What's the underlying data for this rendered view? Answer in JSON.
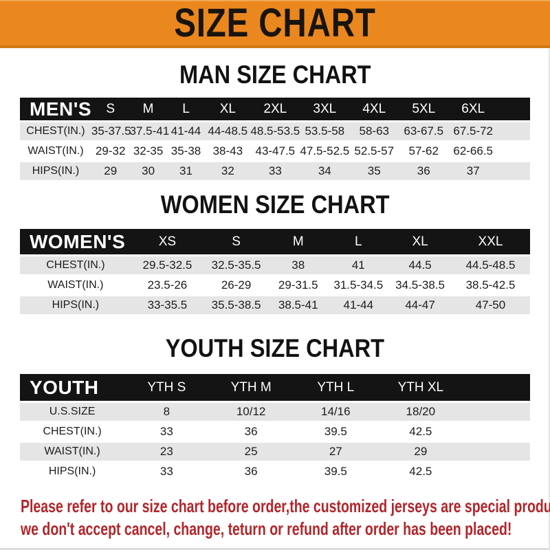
{
  "banner": {
    "title": "SIZE CHART"
  },
  "sections": [
    {
      "key": "men",
      "title": "MAN SIZE CHART",
      "header_label": "MEN'S",
      "columns": [
        "S",
        "M",
        "L",
        "XL",
        "2XL",
        "3XL",
        "4XL",
        "5XL",
        "6XL"
      ],
      "rows": [
        {
          "label": "CHEST(IN.)",
          "values": [
            "35-37.5",
            "37.5-41",
            "41-44",
            "44-48.5",
            "48.5-53.5",
            "53.5-58",
            "58-63",
            "63-67.5",
            "67.5-72"
          ]
        },
        {
          "label": "WAIST(IN.)",
          "values": [
            "29-32",
            "32-35",
            "35-38",
            "38-43",
            "43-47.5",
            "47.5-52.5",
            "52.5-57",
            "57-62",
            "62-66.5"
          ]
        },
        {
          "label": "HIPS(IN.)",
          "values": [
            "29",
            "30",
            "31",
            "32",
            "33",
            "34",
            "35",
            "36",
            "37"
          ]
        }
      ]
    },
    {
      "key": "women",
      "title": "WOMEN SIZE CHART",
      "header_label": "WOMEN'S",
      "columns": [
        "XS",
        "S",
        "M",
        "L",
        "XL",
        "XXL"
      ],
      "rows": [
        {
          "label": "CHEST(IN.)",
          "values": [
            "29.5-32.5",
            "32.5-35.5",
            "38",
            "41",
            "44.5",
            "44.5-48.5"
          ]
        },
        {
          "label": "WAIST(IN.)",
          "values": [
            "23.5-26",
            "26-29",
            "29-31.5",
            "31.5-34.5",
            "34.5-38.5",
            "38.5-42.5"
          ]
        },
        {
          "label": "HIPS(IN.)",
          "values": [
            "33-35.5",
            "35.5-38.5",
            "38.5-41",
            "41-44",
            "44-47",
            "47-50"
          ]
        }
      ]
    },
    {
      "key": "youth",
      "title": "YOUTH SIZE CHART",
      "header_label": "YOUTH",
      "columns": [
        "YTH S",
        "YTH M",
        "YTH L",
        "YTH XL"
      ],
      "rows": [
        {
          "label": "U.S.SIZE",
          "values": [
            "8",
            "10/12",
            "14/16",
            "18/20"
          ]
        },
        {
          "label": "CHEST(IN.)",
          "values": [
            "33",
            "36",
            "39.5",
            "42.5"
          ]
        },
        {
          "label": "WAIST(IN.)",
          "values": [
            "23",
            "25",
            "27",
            "29"
          ]
        },
        {
          "label": "HIPS(IN.)",
          "values": [
            "33",
            "36",
            "39.5",
            "42.5"
          ]
        }
      ]
    }
  ],
  "footer": {
    "line1": "Please refer to our size chart before order,the customized jerseys are special products,",
    "line2": "we don't accept cancel, change, teturn or refund after order has been placed!"
  },
  "colors": {
    "banner_orange": "#EA871E",
    "header_black": "#141414",
    "row_shaded": "#E5E5E5",
    "footer_red": "#B2252A"
  }
}
